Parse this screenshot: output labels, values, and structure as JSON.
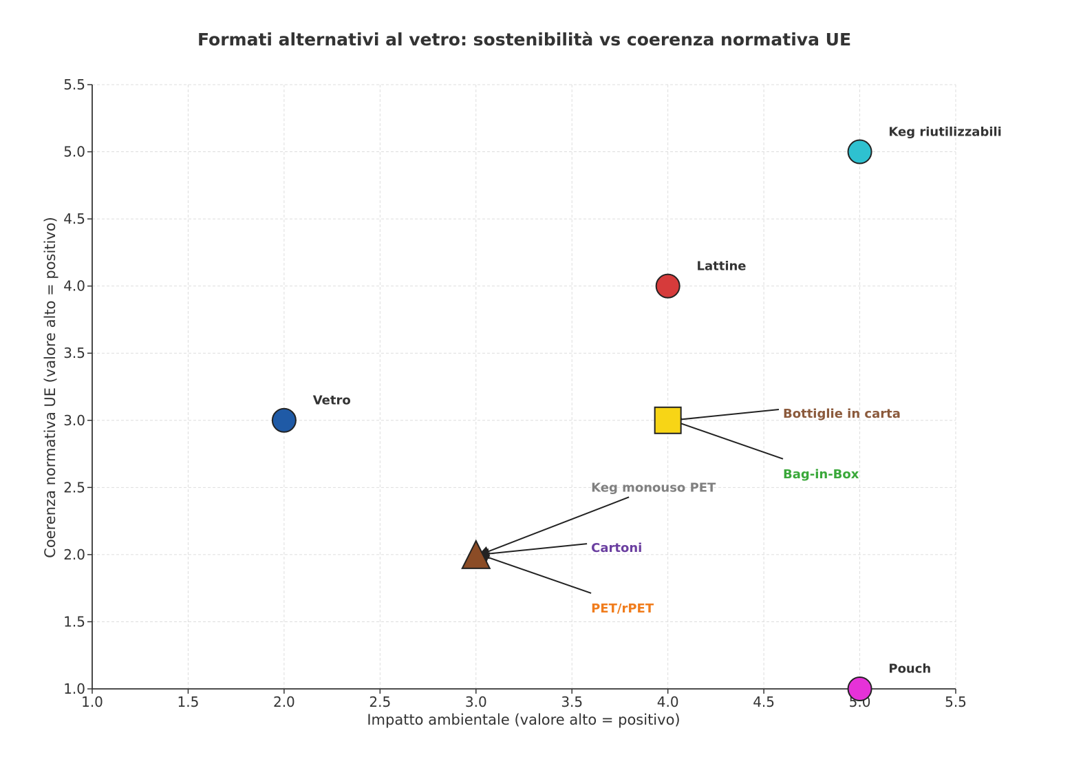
{
  "chart_data": {
    "type": "scatter",
    "title": "Formati alternativi al vetro: sostenibilità vs coerenza normativa UE",
    "xlabel": "Impatto ambientale (valore alto = positivo)",
    "ylabel": "Coerenza normativa UE (valore alto = positivo)",
    "xlim": [
      1.0,
      5.5
    ],
    "ylim": [
      1.0,
      5.5
    ],
    "xticks": [
      "1.0",
      "1.5",
      "2.0",
      "2.5",
      "3.0",
      "3.5",
      "4.0",
      "4.5",
      "5.0",
      "5.5"
    ],
    "yticks": [
      "1.0",
      "1.5",
      "2.0",
      "2.5",
      "3.0",
      "3.5",
      "4.0",
      "4.5",
      "5.0",
      "5.5"
    ],
    "grid": true,
    "legend": "none",
    "points": [
      {
        "label": "Vetro",
        "x": 2.0,
        "y": 3.0,
        "marker": "circle",
        "color": "#1f5aa6",
        "label_color": "#333333",
        "label_x": 2.15,
        "label_y": 3.15,
        "arrow": false
      },
      {
        "label": "Lattine",
        "x": 4.0,
        "y": 4.0,
        "marker": "circle",
        "color": "#d63b3b",
        "label_color": "#333333",
        "label_x": 4.15,
        "label_y": 4.15,
        "arrow": false
      },
      {
        "label": "Keg riutilizzabili",
        "x": 5.0,
        "y": 5.0,
        "marker": "circle",
        "color": "#2ec1d0",
        "label_color": "#333333",
        "label_x": 5.15,
        "label_y": 5.15,
        "arrow": false
      },
      {
        "label": "Pouch",
        "x": 5.0,
        "y": 1.0,
        "marker": "circle",
        "color": "#e632d8",
        "label_color": "#333333",
        "label_x": 5.15,
        "label_y": 1.15,
        "arrow": false
      },
      {
        "label": "Bottiglie in carta",
        "x": 4.0,
        "y": 3.0,
        "marker": "square",
        "color": "#f7d516",
        "label_color": "#8b5a3c",
        "label_x": 4.6,
        "label_y": 3.05,
        "arrow": true
      },
      {
        "label": "Bag-in-Box",
        "x": 4.0,
        "y": 3.0,
        "marker": "square",
        "color": "#f7d516",
        "label_color": "#3aa83a",
        "label_x": 4.6,
        "label_y": 2.6,
        "arrow": true
      },
      {
        "label": "Keg monouso PET",
        "x": 3.0,
        "y": 2.0,
        "marker": "triangle",
        "color": "#8b4c26",
        "label_color": "#808080",
        "label_x": 3.6,
        "label_y": 2.5,
        "arrow": true
      },
      {
        "label": "Cartoni",
        "x": 3.0,
        "y": 2.0,
        "marker": "triangle",
        "color": "#8b4c26",
        "label_color": "#6b3fa0",
        "label_x": 3.6,
        "label_y": 2.05,
        "arrow": true
      },
      {
        "label": "PET/rPET",
        "x": 3.0,
        "y": 2.0,
        "marker": "triangle",
        "color": "#8b4c26",
        "label_color": "#f07c1c",
        "label_x": 3.6,
        "label_y": 1.6,
        "arrow": true
      }
    ]
  }
}
